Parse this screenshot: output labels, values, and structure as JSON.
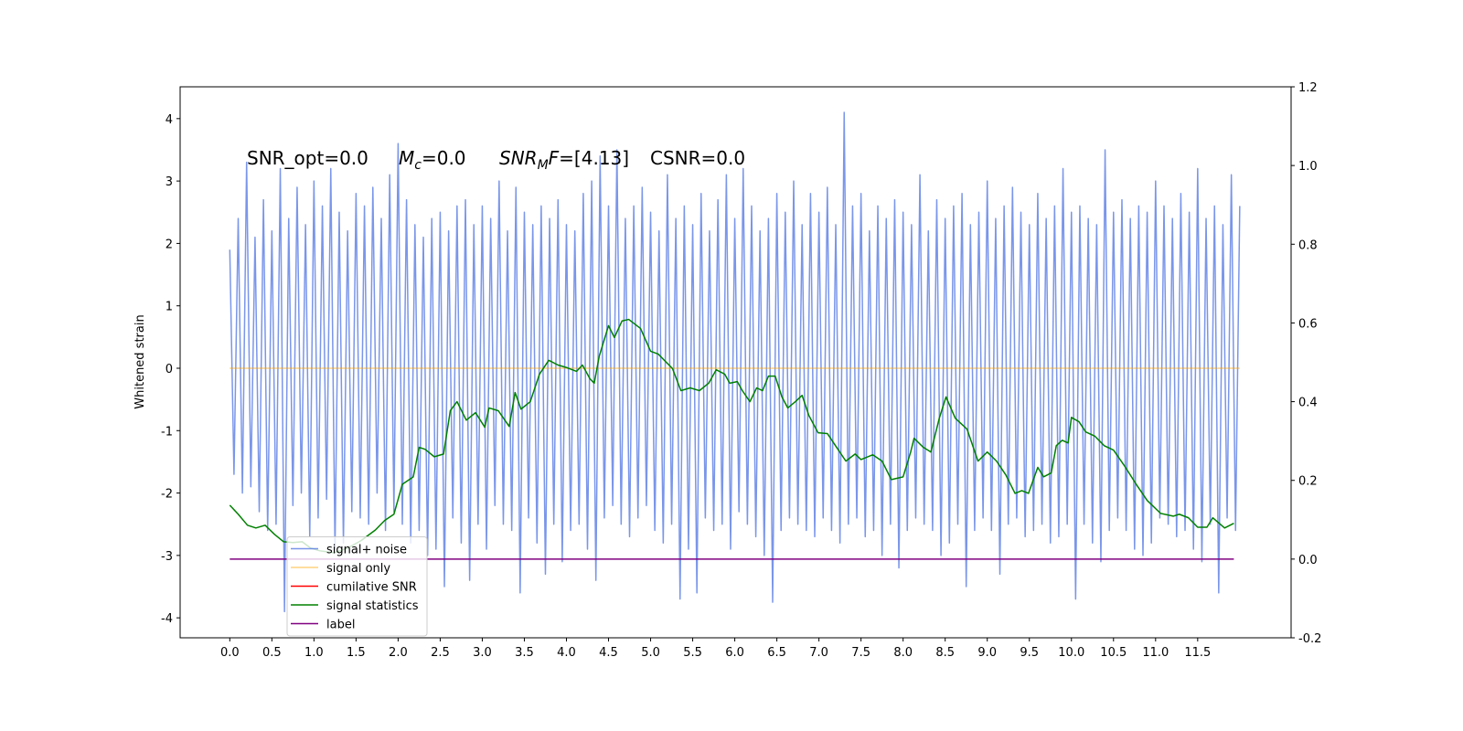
{
  "chart_data": {
    "type": "line",
    "ylabel": "Whitened strain",
    "annotations": [
      "SNR_opt=0.0",
      {
        "base": "M",
        "sub": "c",
        "after": "=0.0"
      },
      {
        "base": "SNR",
        "sub": "M",
        "base2": "F",
        "after": "=[4.13]"
      },
      "CSNR=0.0"
    ],
    "xlim": [
      -0.59,
      12.61
    ],
    "ylim": [
      -4.32,
      4.51
    ],
    "y2lim": [
      -0.2,
      1.2
    ],
    "xticks": [
      {
        "value": 0,
        "label": "0.0"
      },
      0.5,
      {
        "value": 1,
        "label": "1.0"
      },
      1.5,
      {
        "value": 2,
        "label": "2.0"
      },
      2.5,
      {
        "value": 3,
        "label": "3.0"
      },
      3.5,
      {
        "value": 4,
        "label": "4.0"
      },
      4.5,
      {
        "value": 5,
        "label": "5.0"
      },
      5.5,
      {
        "value": 6,
        "label": "6.0"
      },
      6.5,
      {
        "value": 7,
        "label": "7.0"
      },
      7.5,
      {
        "value": 8,
        "label": "8.0"
      },
      8.5,
      {
        "value": 9,
        "label": "9.0"
      },
      9.5,
      {
        "value": 10,
        "label": "10.0"
      },
      10.5,
      {
        "value": 11,
        "label": "11.0"
      },
      11.5
    ],
    "yticks": [
      -4,
      -3,
      -2,
      -1,
      0,
      1,
      2,
      3,
      4
    ],
    "y2ticks": [
      -0.2,
      {
        "value": 0,
        "label": "0.0"
      },
      0.2,
      0.4,
      0.6,
      0.8,
      {
        "value": 1,
        "label": "1.0"
      },
      1.2
    ],
    "legend": "lower left",
    "series": [
      {
        "name": "signal+ noise",
        "color": "#4169e1",
        "opacity": 0.7,
        "x": [
          0,
          0.05,
          0.1,
          0.15,
          0.2,
          0.25,
          0.3,
          0.35,
          0.4,
          0.45,
          0.5,
          0.55,
          0.6,
          0.65,
          0.7,
          0.75,
          0.8,
          0.85,
          0.9,
          0.95,
          1,
          1.05,
          1.1,
          1.15,
          1.2,
          1.25,
          1.3,
          1.35,
          1.4,
          1.45,
          1.5,
          1.55,
          1.6,
          1.65,
          1.7,
          1.75,
          1.8,
          1.85,
          1.9,
          1.95,
          2,
          2.05,
          2.1,
          2.15,
          2.2,
          2.25,
          2.3,
          2.35,
          2.4,
          2.45,
          2.5,
          2.55,
          2.6,
          2.65,
          2.7,
          2.75,
          2.8,
          2.85,
          2.9,
          2.95,
          3,
          3.05,
          3.1,
          3.15,
          3.2,
          3.25,
          3.3,
          3.35,
          3.4,
          3.45,
          3.5,
          3.55,
          3.6,
          3.65,
          3.7,
          3.75,
          3.8,
          3.85,
          3.9,
          3.95,
          4,
          4.05,
          4.1,
          4.15,
          4.2,
          4.25,
          4.3,
          4.35,
          4.4,
          4.45,
          4.5,
          4.55,
          4.6,
          4.65,
          4.7,
          4.75,
          4.8,
          4.85,
          4.9,
          4.95,
          5,
          5.05,
          5.1,
          5.15,
          5.2,
          5.25,
          5.3,
          5.35,
          5.4,
          5.45,
          5.5,
          5.55,
          5.6,
          5.65,
          5.7,
          5.75,
          5.8,
          5.85,
          5.9,
          5.95,
          6,
          6.05,
          6.1,
          6.15,
          6.2,
          6.25,
          6.3,
          6.35,
          6.4,
          6.45,
          6.5,
          6.55,
          6.6,
          6.65,
          6.7,
          6.75,
          6.8,
          6.85,
          6.9,
          6.95,
          7,
          7.05,
          7.1,
          7.15,
          7.2,
          7.25,
          7.3,
          7.35,
          7.4,
          7.45,
          7.5,
          7.55,
          7.6,
          7.65,
          7.7,
          7.75,
          7.8,
          7.85,
          7.9,
          7.95,
          8,
          8.05,
          8.1,
          8.15,
          8.2,
          8.25,
          8.3,
          8.35,
          8.4,
          8.45,
          8.5,
          8.55,
          8.6,
          8.65,
          8.7,
          8.75,
          8.8,
          8.85,
          8.9,
          8.95,
          9,
          9.05,
          9.1,
          9.15,
          9.2,
          9.25,
          9.3,
          9.35,
          9.4,
          9.45,
          9.5,
          9.55,
          9.6,
          9.65,
          9.7,
          9.75,
          9.8,
          9.85,
          9.9,
          9.95,
          10,
          10.05,
          10.1,
          10.15,
          10.2,
          10.25,
          10.3,
          10.35,
          10.4,
          10.45,
          10.5,
          10.55,
          10.6,
          10.65,
          10.7,
          10.75,
          10.8,
          10.85,
          10.9,
          10.95,
          11,
          11.05,
          11.1,
          11.15,
          11.2,
          11.25,
          11.3,
          11.35,
          11.4,
          11.45,
          11.5,
          11.55,
          11.6,
          11.65,
          11.7,
          11.75,
          11.8,
          11.85,
          11.9,
          11.95,
          12
        ],
        "values": [
          1.9,
          -1.7,
          2.4,
          -2.0,
          3.3,
          -1.9,
          2.1,
          -2.3,
          2.7,
          -2.6,
          2.2,
          -2.5,
          3.2,
          -3.9,
          2.4,
          -2.2,
          2.9,
          -2.0,
          2.3,
          -2.7,
          3.0,
          -2.4,
          2.6,
          -2.1,
          3.2,
          -2.9,
          2.5,
          -2.8,
          2.2,
          -2.3,
          2.8,
          -2.4,
          2.6,
          -2.5,
          2.9,
          -2.0,
          2.4,
          -2.6,
          3.1,
          -2.3,
          3.6,
          -2.5,
          2.7,
          -2.8,
          2.3,
          -2.6,
          2.1,
          -3.0,
          2.4,
          -2.9,
          2.5,
          -3.5,
          2.2,
          -2.4,
          2.6,
          -2.8,
          2.7,
          -3.4,
          2.3,
          -2.5,
          2.6,
          -2.9,
          2.4,
          -2.2,
          3.0,
          -2.5,
          2.2,
          -2.6,
          2.9,
          -3.6,
          2.5,
          -2.4,
          2.3,
          -2.8,
          2.6,
          -3.3,
          2.4,
          -2.5,
          2.7,
          -3.1,
          2.3,
          -2.6,
          2.2,
          -2.5,
          2.8,
          -2.9,
          3.0,
          -3.4,
          3.4,
          -2.4,
          2.6,
          -2.2,
          3.5,
          -2.5,
          2.4,
          -2.7,
          2.6,
          -2.4,
          2.9,
          -2.2,
          2.5,
          -2.6,
          2.2,
          -2.8,
          3.1,
          -2.5,
          2.4,
          -3.7,
          2.6,
          -2.9,
          2.3,
          -3.6,
          2.8,
          -2.4,
          2.2,
          -2.6,
          2.7,
          -2.5,
          3.1,
          -2.9,
          2.4,
          -2.3,
          3.2,
          -2.5,
          2.6,
          -2.7,
          2.2,
          -3.0,
          2.4,
          -3.75,
          2.8,
          -2.6,
          2.5,
          -2.4,
          3.0,
          -2.5,
          2.3,
          -2.6,
          2.8,
          -2.7,
          2.5,
          -2.4,
          2.9,
          -2.6,
          2.3,
          -2.8,
          4.1,
          -2.5,
          2.6,
          -2.4,
          2.8,
          -2.7,
          2.2,
          -2.6,
          2.6,
          -3.0,
          2.4,
          -2.5,
          2.7,
          -3.2,
          2.5,
          -2.6,
          2.3,
          -2.4,
          3.1,
          -2.5,
          2.2,
          -2.6,
          2.7,
          -3.0,
          2.4,
          -2.8,
          2.6,
          -2.5,
          2.8,
          -3.5,
          2.3,
          -2.6,
          2.5,
          -2.4,
          3.0,
          -2.6,
          2.4,
          -3.3,
          2.6,
          -2.5,
          2.9,
          -2.4,
          2.5,
          -2.7,
          2.3,
          -2.6,
          2.8,
          -2.5,
          2.4,
          -2.8,
          2.6,
          -2.7,
          3.2,
          -2.5,
          2.5,
          -3.7,
          2.6,
          -2.5,
          2.4,
          -2.8,
          2.3,
          -3.1,
          3.5,
          -2.6,
          2.5,
          -2.4,
          2.7,
          -2.6,
          2.4,
          -2.9,
          2.6,
          -3.0,
          2.5,
          -2.8,
          3.0,
          -2.4,
          2.6,
          -2.5,
          2.4,
          -2.7,
          2.8,
          -2.6,
          2.5,
          -2.9,
          3.2,
          -3.1,
          2.4,
          -2.5,
          2.6,
          -3.6,
          2.3,
          -2.4,
          3.1,
          -2.6,
          2.6
        ]
      },
      {
        "name": "signal only",
        "color": "#ffa500",
        "opacity": 0.5,
        "x": [
          0,
          12
        ],
        "values": [
          0,
          0
        ]
      },
      {
        "name": "cumilative SNR",
        "color": "#ff0000",
        "x": [],
        "values": []
      },
      {
        "name": "signal statistics",
        "color": "#008000",
        "axis": "y2",
        "x": [
          0,
          0.1,
          0.21,
          0.31,
          0.42,
          0.53,
          0.64,
          0.75,
          0.86,
          0.96,
          1.07,
          1.24,
          1.4,
          1.56,
          1.73,
          1.84,
          1.95,
          2.05,
          2.18,
          2.25,
          2.32,
          2.43,
          2.54,
          2.62,
          2.7,
          2.81,
          2.92,
          3.03,
          3.08,
          3.19,
          3.32,
          3.39,
          3.46,
          3.57,
          3.68,
          3.79,
          3.9,
          4.01,
          4.12,
          4.19,
          4.28,
          4.33,
          4.39,
          4.5,
          4.57,
          4.66,
          4.74,
          4.88,
          5.0,
          5.09,
          5.26,
          5.36,
          5.47,
          5.58,
          5.69,
          5.78,
          5.88,
          5.94,
          6.03,
          6.09,
          6.18,
          6.26,
          6.33,
          6.4,
          6.48,
          6.56,
          6.63,
          6.72,
          6.8,
          6.88,
          6.99,
          7.1,
          7.21,
          7.32,
          7.43,
          7.5,
          7.64,
          7.75,
          7.86,
          8.0,
          8.09,
          8.13,
          8.24,
          8.33,
          8.43,
          8.51,
          8.62,
          8.76,
          8.89,
          9.0,
          9.11,
          9.22,
          9.33,
          9.41,
          9.49,
          9.6,
          9.67,
          9.76,
          9.82,
          9.89,
          9.96,
          10.0,
          10.09,
          10.17,
          10.28,
          10.39,
          10.5,
          10.63,
          10.77,
          10.9,
          11.06,
          11.21,
          11.28,
          11.39,
          11.5,
          11.61,
          11.68,
          11.82,
          11.93
        ],
        "values": [
          0.137,
          0.114,
          0.086,
          0.079,
          0.086,
          0.063,
          0.044,
          0.042,
          0.044,
          0.028,
          0.021,
          0.016,
          0.028,
          0.047,
          0.074,
          0.098,
          0.114,
          0.19,
          0.209,
          0.284,
          0.279,
          0.26,
          0.267,
          0.377,
          0.4,
          0.353,
          0.372,
          0.335,
          0.384,
          0.377,
          0.337,
          0.423,
          0.381,
          0.4,
          0.47,
          0.505,
          0.493,
          0.486,
          0.477,
          0.493,
          0.458,
          0.447,
          0.516,
          0.593,
          0.563,
          0.605,
          0.609,
          0.586,
          0.528,
          0.521,
          0.484,
          0.428,
          0.435,
          0.428,
          0.447,
          0.481,
          0.47,
          0.447,
          0.451,
          0.428,
          0.4,
          0.435,
          0.428,
          0.465,
          0.465,
          0.412,
          0.384,
          0.4,
          0.416,
          0.365,
          0.321,
          0.319,
          0.284,
          0.249,
          0.267,
          0.253,
          0.265,
          0.249,
          0.202,
          0.209,
          0.272,
          0.307,
          0.284,
          0.272,
          0.358,
          0.412,
          0.358,
          0.33,
          0.249,
          0.272,
          0.249,
          0.214,
          0.167,
          0.174,
          0.167,
          0.233,
          0.209,
          0.219,
          0.288,
          0.302,
          0.295,
          0.36,
          0.349,
          0.323,
          0.312,
          0.288,
          0.277,
          0.237,
          0.19,
          0.149,
          0.116,
          0.109,
          0.114,
          0.105,
          0.081,
          0.081,
          0.105,
          0.079,
          0.091
        ]
      },
      {
        "name": "label",
        "color": "#800080",
        "axis": "y2",
        "x": [
          0,
          11.93
        ],
        "values": [
          0,
          0
        ]
      }
    ]
  }
}
